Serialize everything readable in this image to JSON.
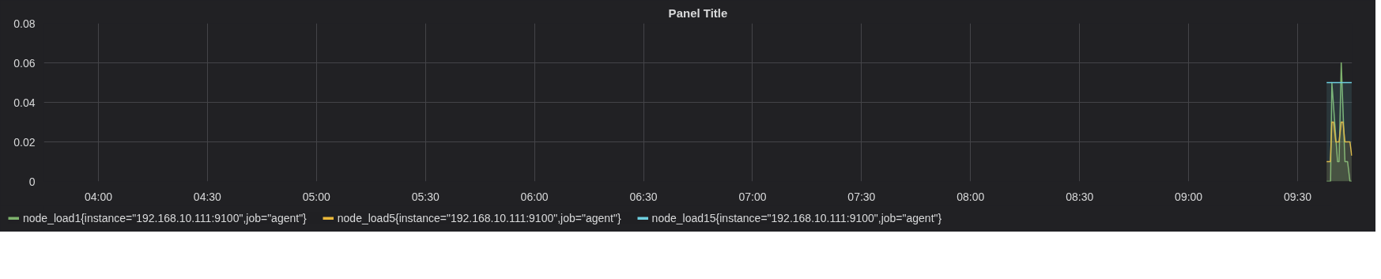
{
  "chart_data": {
    "type": "area",
    "title": "Panel Title",
    "xlim": [
      3.75,
      9.75
    ],
    "xticks": [
      {
        "value": 4,
        "label": "04:00"
      },
      {
        "value": 4.5,
        "label": "04:30"
      },
      {
        "value": 5,
        "label": "05:00"
      },
      {
        "value": 5.5,
        "label": "05:30"
      },
      {
        "value": 6,
        "label": "06:00"
      },
      {
        "value": 6.5,
        "label": "06:30"
      },
      {
        "value": 7,
        "label": "07:00"
      },
      {
        "value": 7.5,
        "label": "07:30"
      },
      {
        "value": 8,
        "label": "08:00"
      },
      {
        "value": 8.5,
        "label": "08:30"
      },
      {
        "value": 9,
        "label": "09:00"
      },
      {
        "value": 9.5,
        "label": "09:30"
      }
    ],
    "ylim": [
      0,
      0.08
    ],
    "yticks": [
      0,
      0.02,
      0.04,
      0.06,
      0.08
    ],
    "grid": true,
    "legend": "bottom",
    "series": [
      {
        "name": "node_load1{instance=\"192.168.10.111:9100\",job=\"agent\"}",
        "color": "#7eb26d",
        "x": [
          9.633,
          9.651,
          9.657,
          9.683,
          9.69,
          9.7,
          9.717,
          9.729,
          9.74,
          9.748
        ],
        "values": [
          0,
          0,
          0.05,
          0.01,
          0.01,
          0.06,
          0.01,
          0.01,
          0,
          0
        ]
      },
      {
        "name": "node_load5{instance=\"192.168.10.111:9100\",job=\"agent\"}",
        "color": "#eab839",
        "x": [
          9.633,
          9.65,
          9.657,
          9.665,
          9.675,
          9.69,
          9.7,
          9.708,
          9.717,
          9.74,
          9.748
        ],
        "values": [
          0.01,
          0.01,
          0.03,
          0.03,
          0.02,
          0.02,
          0.03,
          0.03,
          0.02,
          0.02,
          0.013
        ]
      },
      {
        "name": "node_load15{instance=\"192.168.10.111:9100\",job=\"agent\"}",
        "color": "#6ed0e0",
        "x": [
          9.633,
          9.748
        ],
        "values": [
          0.05,
          0.05
        ]
      }
    ]
  }
}
